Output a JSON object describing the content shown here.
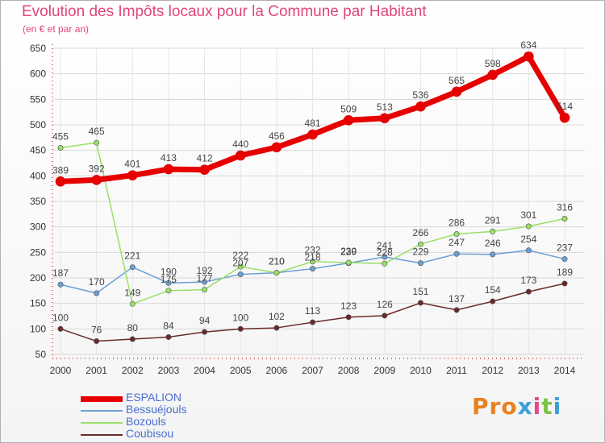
{
  "title": "Evolution des Impôts locaux pour la Commune par Habitant",
  "subtitle": "(en € et par an)",
  "logo": {
    "letters": [
      "P",
      "r",
      "o",
      "x",
      "i",
      "t",
      "i"
    ],
    "colors": [
      "#e8821e",
      "#e8821e",
      "#e8821e",
      "#3aa0d8",
      "#e34a87",
      "#7dc242",
      "#3aa0d8"
    ]
  },
  "chart_data": {
    "type": "line",
    "title": "Evolution des Impôts locaux pour la Commune par Habitant",
    "subtitle": "(en € et par an)",
    "xlabel": "",
    "ylabel": "",
    "x": [
      "2000",
      "2001",
      "2002",
      "2003",
      "2004",
      "2005",
      "2006",
      "2007",
      "2008",
      "2009",
      "2010",
      "2011",
      "2012",
      "2013",
      "2014"
    ],
    "ylim": [
      50,
      650
    ],
    "yticks": [
      50,
      100,
      150,
      200,
      250,
      300,
      350,
      400,
      450,
      500,
      550,
      600,
      650
    ],
    "grid": true,
    "legend_position": "bottom-left",
    "series": [
      {
        "name": "ESPALION",
        "color": "#e60000",
        "line_width": 7,
        "values": [
          389,
          392,
          401,
          413,
          412,
          440,
          456,
          481,
          509,
          513,
          536,
          565,
          598,
          634,
          514
        ]
      },
      {
        "name": "Bessuéjouls",
        "color": "#6a9fd4",
        "line_width": 1.5,
        "values": [
          187,
          170,
          221,
          190,
          192,
          207,
          210,
          218,
          229,
          241,
          229,
          247,
          246,
          254,
          237
        ]
      },
      {
        "name": "Bozouls",
        "color": "#99e066",
        "line_width": 1.5,
        "values": [
          455,
          465,
          149,
          175,
          177,
          222,
          210,
          232,
          230,
          228,
          266,
          286,
          291,
          301,
          316
        ]
      },
      {
        "name": "Coubisou",
        "color": "#6b2a2a",
        "line_width": 1.5,
        "values": [
          100,
          76,
          80,
          84,
          94,
          100,
          102,
          113,
          123,
          126,
          151,
          137,
          154,
          173,
          189
        ]
      }
    ]
  }
}
